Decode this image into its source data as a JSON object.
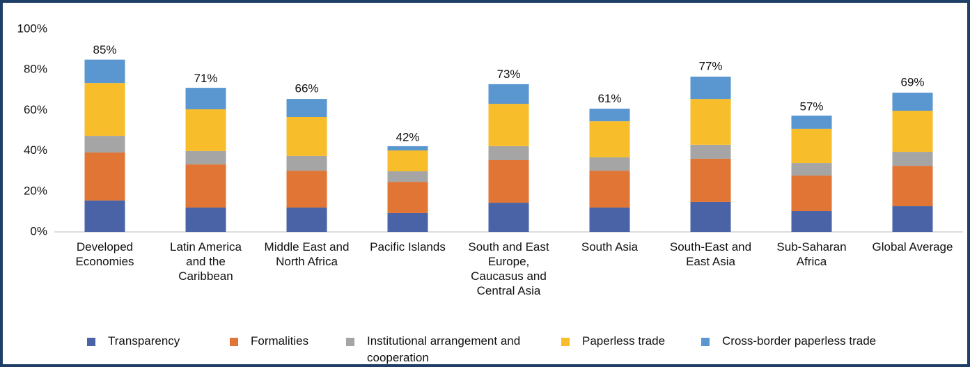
{
  "chart_data": {
    "type": "stacked_bar",
    "categories": [
      "Developed Economies",
      "Latin America and the Caribbean",
      "Middle East and North Africa",
      "Pacific Islands",
      "South and East Europe, Caucasus and Central Asia",
      "South Asia",
      "South-East and East Asia",
      "Sub-Saharan Africa",
      "Global Average"
    ],
    "series": [
      {
        "name": "Transparency",
        "color": "#4a63a6",
        "values": [
          15.5,
          12.0,
          12.0,
          9.3,
          14.4,
          12.0,
          14.8,
          10.3,
          12.7
        ]
      },
      {
        "name": "Formalities",
        "color": "#e07535",
        "values": [
          23.7,
          21.3,
          18.2,
          15.4,
          21.0,
          18.2,
          21.3,
          17.5,
          19.9
        ]
      },
      {
        "name": "Institutional arrangement and cooperation",
        "color": "#a5a5a5",
        "values": [
          8.2,
          6.6,
          7.3,
          5.2,
          6.9,
          6.6,
          6.9,
          6.2,
          6.9
        ]
      },
      {
        "name": "Paperless trade",
        "color": "#f7bd2a",
        "values": [
          26.1,
          20.6,
          19.2,
          10.3,
          20.9,
          17.8,
          22.6,
          16.9,
          20.3
        ]
      },
      {
        "name": "Cross-border paperless trade",
        "color": "#5a96cf",
        "values": [
          11.5,
          10.6,
          8.9,
          2.1,
          9.7,
          6.2,
          11.0,
          6.5,
          8.9
        ]
      }
    ],
    "totals": {
      "values": [
        85,
        71,
        66,
        42,
        73,
        61,
        77,
        57,
        69
      ],
      "value_labels": [
        "85%",
        "71%",
        "66%",
        "42%",
        "73%",
        "61%",
        "77%",
        "57%",
        "69%"
      ]
    },
    "ylim": [
      0,
      100
    ],
    "yticks": [
      {
        "value": 0,
        "label": "0%"
      },
      {
        "value": 20,
        "label": "20%"
      },
      {
        "value": 40,
        "label": "40%"
      },
      {
        "value": 60,
        "label": "60%"
      },
      {
        "value": 80,
        "label": "80%"
      },
      {
        "value": 100,
        "label": "100%"
      }
    ],
    "grid": false,
    "legend": "bottom"
  }
}
